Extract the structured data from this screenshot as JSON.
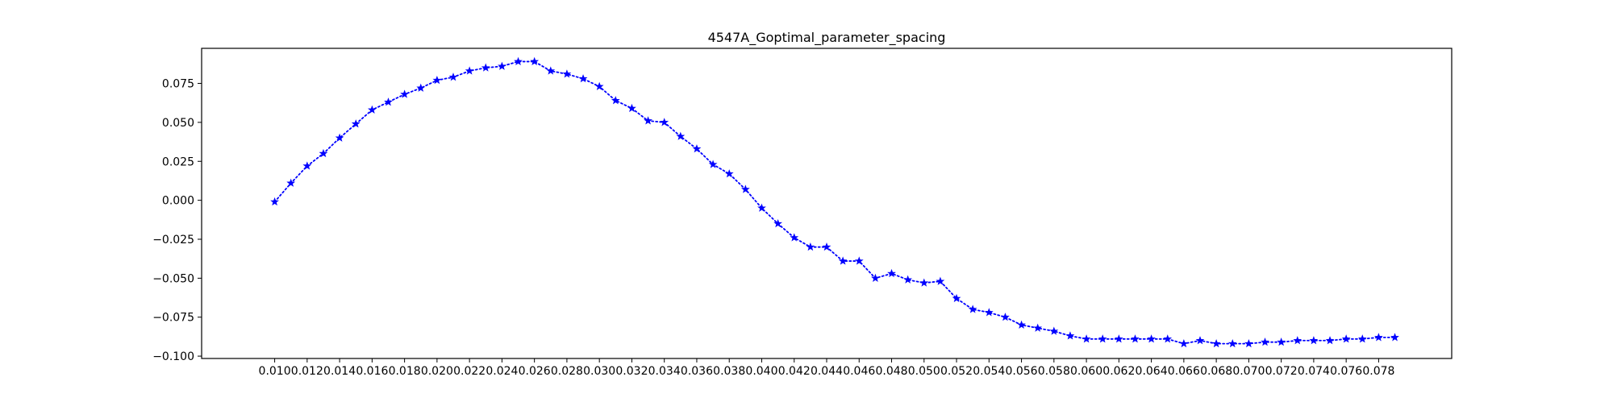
{
  "chart_data": {
    "type": "line",
    "title": "4547A_Goptimal_parameter_spacing",
    "xlabel": "",
    "ylabel": "",
    "xlim": [
      0.0055,
      0.0825
    ],
    "ylim": [
      -0.1015,
      0.0975
    ],
    "x_ticks": [
      0.01,
      0.012,
      0.014,
      0.016,
      0.018,
      0.02,
      0.022,
      0.024,
      0.026,
      0.028,
      0.03,
      0.032,
      0.034,
      0.036,
      0.038,
      0.04,
      0.042,
      0.044,
      0.046,
      0.048,
      0.05,
      0.052,
      0.054,
      0.056,
      0.058,
      0.06,
      0.062,
      0.064,
      0.066,
      0.068,
      0.07,
      0.072,
      0.074,
      0.076,
      0.078
    ],
    "x_tick_labels": [
      "0.010",
      "0.012",
      "0.014",
      "0.016",
      "0.018",
      "0.020",
      "0.022",
      "0.024",
      "0.026",
      "0.028",
      "0.030",
      "0.032",
      "0.034",
      "0.036",
      "0.038",
      "0.040",
      "0.042",
      "0.044",
      "0.046",
      "0.048",
      "0.050",
      "0.052",
      "0.054",
      "0.056",
      "0.058",
      "0.060",
      "0.062",
      "0.064",
      "0.066",
      "0.068",
      "0.070",
      "0.072",
      "0.074",
      "0.076",
      "0.078"
    ],
    "y_ticks": [
      -0.1,
      -0.075,
      -0.05,
      -0.025,
      0.0,
      0.025,
      0.05,
      0.075
    ],
    "y_tick_labels": [
      "−0.100",
      "−0.075",
      "−0.050",
      "−0.025",
      "0.000",
      "0.025",
      "0.050",
      "0.075"
    ],
    "grid": false,
    "series": [
      {
        "color": "#0000ff",
        "line_style": "dotted",
        "marker": "star",
        "x": [
          0.01,
          0.011,
          0.012,
          0.013,
          0.014,
          0.015,
          0.016,
          0.017,
          0.018,
          0.019,
          0.02,
          0.021,
          0.022,
          0.023,
          0.024,
          0.025,
          0.026,
          0.027,
          0.028,
          0.029,
          0.03,
          0.031,
          0.032,
          0.033,
          0.034,
          0.035,
          0.036,
          0.037,
          0.038,
          0.039,
          0.04,
          0.041,
          0.042,
          0.043,
          0.044,
          0.045,
          0.046,
          0.047,
          0.048,
          0.049,
          0.05,
          0.051,
          0.052,
          0.053,
          0.054,
          0.055,
          0.056,
          0.057,
          0.058,
          0.059,
          0.06,
          0.061,
          0.062,
          0.063,
          0.064,
          0.065,
          0.066,
          0.067,
          0.068,
          0.069,
          0.07,
          0.071,
          0.072,
          0.073,
          0.074,
          0.075,
          0.076,
          0.077,
          0.078,
          0.079
        ],
        "y": [
          -0.001,
          0.011,
          0.022,
          0.03,
          0.04,
          0.049,
          0.058,
          0.063,
          0.068,
          0.072,
          0.077,
          0.079,
          0.083,
          0.085,
          0.086,
          0.089,
          0.089,
          0.083,
          0.081,
          0.078,
          0.073,
          0.064,
          0.059,
          0.051,
          0.05,
          0.041,
          0.033,
          0.023,
          0.017,
          0.007,
          -0.005,
          -0.015,
          -0.024,
          -0.03,
          -0.03,
          -0.039,
          -0.039,
          -0.05,
          -0.047,
          -0.051,
          -0.053,
          -0.052,
          -0.063,
          -0.07,
          -0.072,
          -0.075,
          -0.08,
          -0.082,
          -0.084,
          -0.087,
          -0.089,
          -0.089,
          -0.089,
          -0.089,
          -0.089,
          -0.089,
          -0.092,
          -0.09,
          -0.092,
          -0.092,
          -0.092,
          -0.091,
          -0.091,
          -0.09,
          -0.09,
          -0.09,
          -0.089,
          -0.089,
          -0.088,
          -0.088
        ]
      }
    ]
  }
}
